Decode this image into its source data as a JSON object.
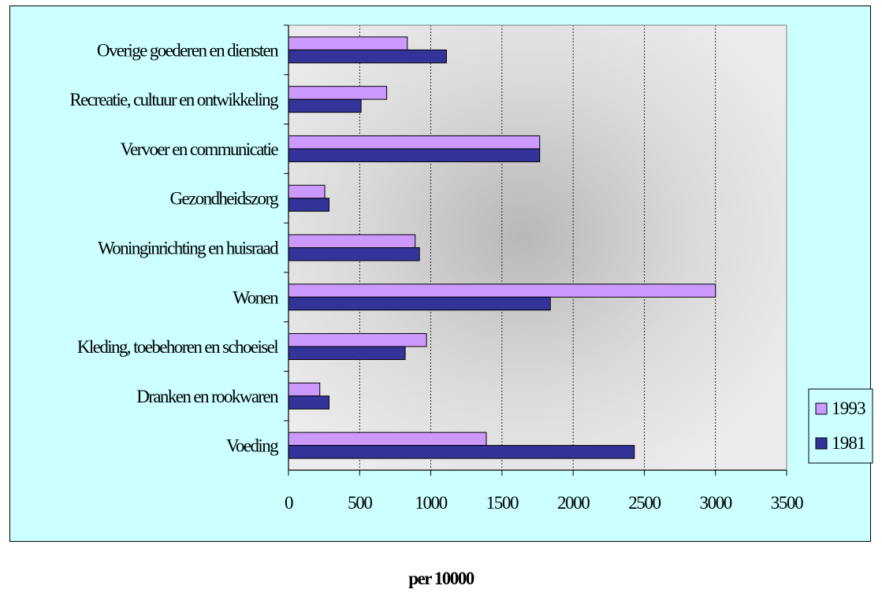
{
  "chart_data": {
    "type": "bar",
    "orientation": "horizontal",
    "categories": [
      "Voeding",
      "Dranken en rookwaren",
      "Kleding, toebehoren en schoeisel",
      "Wonen",
      "Woninginrichting en huisraad",
      "Gezondheidszorg",
      "Vervoer en communicatie",
      "Recreatie, cultuur en ontwikkeling",
      "Overige goederen en diensten"
    ],
    "series": [
      {
        "name": "1993",
        "color": "#cc99ff",
        "values": [
          1390,
          220,
          970,
          3000,
          890,
          255,
          1765,
          690,
          835
        ]
      },
      {
        "name": "1981",
        "color": "#333399",
        "values": [
          2430,
          285,
          820,
          1840,
          920,
          285,
          1765,
          510,
          1110
        ]
      }
    ],
    "title": "",
    "xlabel": "per 10000",
    "ylabel": "",
    "xlim": [
      0,
      3500
    ],
    "xticks": [
      "0",
      "500",
      "1000",
      "1500",
      "2000",
      "2500",
      "3000",
      "3500"
    ],
    "grid": "vertical",
    "legend_position": "right",
    "plot_background": "radial gradient grey",
    "chart_background": "#ccffff"
  }
}
